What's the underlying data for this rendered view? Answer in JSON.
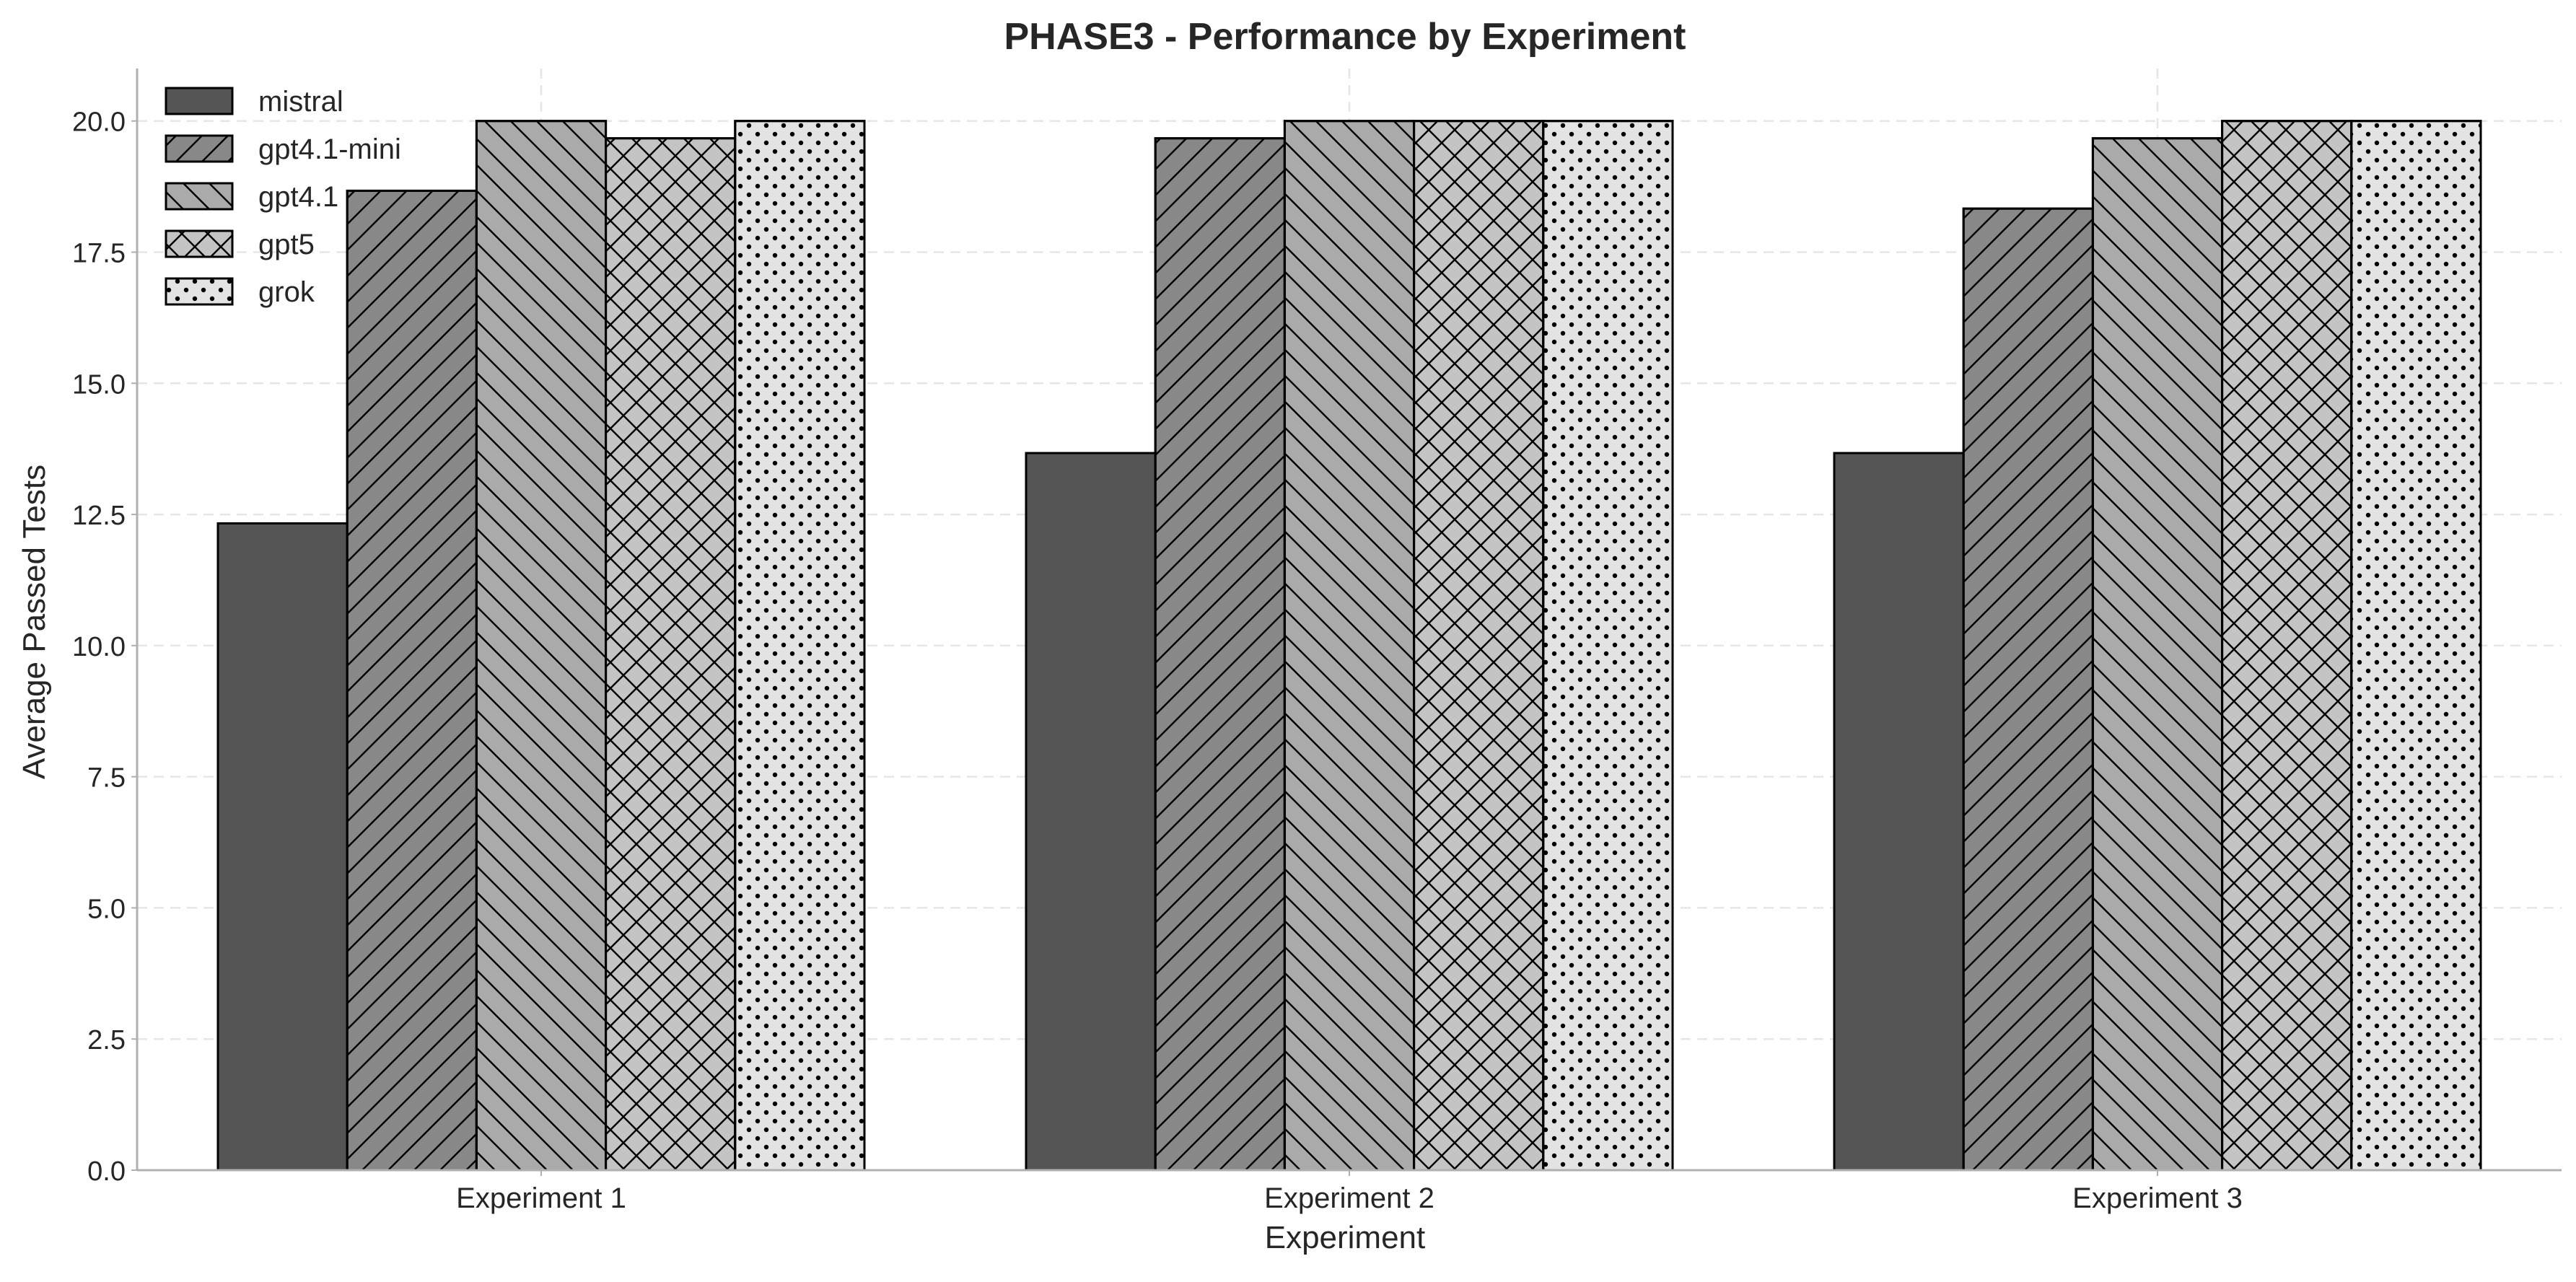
{
  "chart_data": {
    "type": "bar",
    "title": "PHASE3 - Performance by Experiment",
    "xlabel": "Experiment",
    "ylabel": "Average Passed Tests",
    "categories": [
      "Experiment 1",
      "Experiment 2",
      "Experiment 3"
    ],
    "ylim": [
      0,
      21
    ],
    "yticks": [
      0.0,
      2.5,
      5.0,
      7.5,
      10.0,
      12.5,
      15.0,
      17.5,
      20.0
    ],
    "ytick_labels": [
      "0.0",
      "2.5",
      "5.0",
      "7.5",
      "10.0",
      "12.5",
      "15.0",
      "17.5",
      "20.0"
    ],
    "grid": true,
    "legend_position": "top-left",
    "series": [
      {
        "name": "mistral",
        "values": [
          12.33,
          13.67,
          13.67
        ],
        "color": "#555555",
        "hatch": "none"
      },
      {
        "name": "gpt4.1-mini",
        "values": [
          18.67,
          19.67,
          18.33
        ],
        "color": "#888888",
        "hatch": "forward-diagonal"
      },
      {
        "name": "gpt4.1",
        "values": [
          20.0,
          20.0,
          19.67
        ],
        "color": "#aaaaaa",
        "hatch": "back-diagonal"
      },
      {
        "name": "gpt5",
        "values": [
          19.67,
          20.0,
          20.0
        ],
        "color": "#c4c4c4",
        "hatch": "cross"
      },
      {
        "name": "grok",
        "values": [
          20.0,
          20.0,
          20.0
        ],
        "color": "#e3e3e3",
        "hatch": "dots"
      }
    ]
  }
}
